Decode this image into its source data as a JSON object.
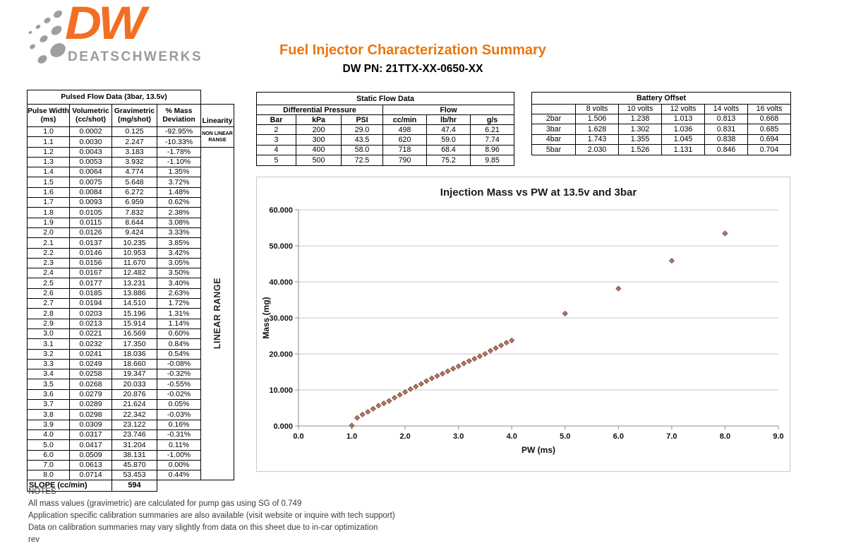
{
  "logo": {
    "brand": "DW",
    "name": "DEATSCHWERKS",
    "orange": "#F26F21",
    "gray": "#9A9A9A"
  },
  "header": {
    "title": "Fuel Injector Characterization Summary",
    "part_number": "DW PN: 21TTX-XX-0650-XX",
    "title_color": "#E8770E"
  },
  "pulsed_table": {
    "title": "Pulsed Flow Data (3bar, 13.5v)",
    "col_headers": [
      [
        "Pulse Width",
        "(ms)"
      ],
      [
        "Volumetric",
        "(cc/shot)"
      ],
      [
        "Gravimetric",
        "(mg/shot)"
      ],
      [
        "% Mass",
        "Deviation"
      ],
      [
        "Linearity"
      ]
    ],
    "non_linear_label": "NON LINEAR RANGE",
    "linear_label": "LINEAR RANGE",
    "rows": [
      [
        "1.0",
        "0.0002",
        "0.125",
        "-92.95%"
      ],
      [
        "1.1",
        "0.0030",
        "2.247",
        "-10.33%"
      ],
      [
        "1.2",
        "0.0043",
        "3.183",
        "-1.78%"
      ],
      [
        "1.3",
        "0.0053",
        "3.932",
        "-1.10%"
      ],
      [
        "1.4",
        "0.0064",
        "4.774",
        "1.35%"
      ],
      [
        "1.5",
        "0.0075",
        "5.648",
        "3.72%"
      ],
      [
        "1.6",
        "0.0084",
        "6.272",
        "1.48%"
      ],
      [
        "1.7",
        "0.0093",
        "6.959",
        "0.62%"
      ],
      [
        "1.8",
        "0.0105",
        "7.832",
        "2.38%"
      ],
      [
        "1.9",
        "0.0115",
        "8.644",
        "3.08%"
      ],
      [
        "2.0",
        "0.0126",
        "9.424",
        "3.33%"
      ],
      [
        "2.1",
        "0.0137",
        "10.235",
        "3.85%"
      ],
      [
        "2.2",
        "0.0146",
        "10.953",
        "3.42%"
      ],
      [
        "2.3",
        "0.0156",
        "11.670",
        "3.05%"
      ],
      [
        "2.4",
        "0.0167",
        "12.482",
        "3.50%"
      ],
      [
        "2.5",
        "0.0177",
        "13.231",
        "3.40%"
      ],
      [
        "2.6",
        "0.0185",
        "13.886",
        "2.63%"
      ],
      [
        "2.7",
        "0.0194",
        "14.510",
        "1.72%"
      ],
      [
        "2.8",
        "0.0203",
        "15.196",
        "1.31%"
      ],
      [
        "2.9",
        "0.0213",
        "15.914",
        "1.14%"
      ],
      [
        "3.0",
        "0.0221",
        "16.569",
        "0.60%"
      ],
      [
        "3.1",
        "0.0232",
        "17.350",
        "0.84%"
      ],
      [
        "3.2",
        "0.0241",
        "18.036",
        "0.54%"
      ],
      [
        "3.3",
        "0.0249",
        "18.660",
        "-0.08%"
      ],
      [
        "3.4",
        "0.0258",
        "19.347",
        "-0.32%"
      ],
      [
        "3.5",
        "0.0268",
        "20.033",
        "-0.55%"
      ],
      [
        "3.6",
        "0.0279",
        "20.876",
        "-0.02%"
      ],
      [
        "3.7",
        "0.0289",
        "21.624",
        "0.05%"
      ],
      [
        "3.8",
        "0.0298",
        "22.342",
        "-0.03%"
      ],
      [
        "3.9",
        "0.0309",
        "23.122",
        "0.16%"
      ],
      [
        "4.0",
        "0.0317",
        "23.746",
        "-0.31%"
      ],
      [
        "5.0",
        "0.0417",
        "31.204",
        "0.11%"
      ],
      [
        "6.0",
        "0.0509",
        "38.131",
        "-1.00%"
      ],
      [
        "7.0",
        "0.0613",
        "45.870",
        "0.00%"
      ],
      [
        "8.0",
        "0.0714",
        "53.453",
        "0.44%"
      ]
    ],
    "slope_label": "SLOPE (cc/min)",
    "slope_value": "594"
  },
  "static_table": {
    "title": "Static Flow Data",
    "group_headers": [
      "Differential Pressure",
      "Flow"
    ],
    "col_headers": [
      "Bar",
      "kPa",
      "PSI",
      "cc/min",
      "lb/hr",
      "g/s"
    ],
    "rows": [
      [
        "2",
        "200",
        "29.0",
        "498",
        "47.4",
        "6.21"
      ],
      [
        "3",
        "300",
        "43.5",
        "620",
        "59.0",
        "7.74"
      ],
      [
        "4",
        "400",
        "58.0",
        "718",
        "68.4",
        "8.96"
      ],
      [
        "5",
        "500",
        "72.5",
        "790",
        "75.2",
        "9.85"
      ]
    ]
  },
  "battery_table": {
    "title": "Battery Offset",
    "col_headers": [
      "",
      "8 volts",
      "10 volts",
      "12 volts",
      "14 volts",
      "16 volts"
    ],
    "rows": [
      [
        "2bar",
        "1.506",
        "1.238",
        "1.013",
        "0.813",
        "0.668"
      ],
      [
        "3bar",
        "1.628",
        "1.302",
        "1.036",
        "0.831",
        "0.685"
      ],
      [
        "4bar",
        "1.743",
        "1.355",
        "1.045",
        "0.838",
        "0.694"
      ],
      [
        "5bar",
        "2.030",
        "1.526",
        "1.131",
        "0.846",
        "0.704"
      ]
    ]
  },
  "chart_data": {
    "type": "scatter",
    "title": "Injection Mass vs PW at 13.5v and 3bar",
    "xlabel": "PW (ms)",
    "ylabel": "Mass (mg)",
    "xlim": [
      0,
      9
    ],
    "ylim": [
      0,
      60
    ],
    "x_ticks": [
      "0.0",
      "1.0",
      "2.0",
      "3.0",
      "4.0",
      "5.0",
      "6.0",
      "7.0",
      "8.0",
      "9.0"
    ],
    "y_ticks": [
      "0.000",
      "10.000",
      "20.000",
      "30.000",
      "40.000",
      "50.000",
      "60.000"
    ],
    "grid": true,
    "legend": false,
    "marker": {
      "shape": "diamond",
      "fill": "#D9731F",
      "stroke": "#65557B"
    },
    "gridline_color": "#C6C6C6",
    "axis_color": "#A6A6A6",
    "points": [
      [
        1.0,
        0.125
      ],
      [
        1.1,
        2.247
      ],
      [
        1.2,
        3.183
      ],
      [
        1.3,
        3.932
      ],
      [
        1.4,
        4.774
      ],
      [
        1.5,
        5.648
      ],
      [
        1.6,
        6.272
      ],
      [
        1.7,
        6.959
      ],
      [
        1.8,
        7.832
      ],
      [
        1.9,
        8.644
      ],
      [
        2.0,
        9.424
      ],
      [
        2.1,
        10.235
      ],
      [
        2.2,
        10.953
      ],
      [
        2.3,
        11.67
      ],
      [
        2.4,
        12.482
      ],
      [
        2.5,
        13.231
      ],
      [
        2.6,
        13.886
      ],
      [
        2.7,
        14.51
      ],
      [
        2.8,
        15.196
      ],
      [
        2.9,
        15.914
      ],
      [
        3.0,
        16.569
      ],
      [
        3.1,
        17.35
      ],
      [
        3.2,
        18.036
      ],
      [
        3.3,
        18.66
      ],
      [
        3.4,
        19.347
      ],
      [
        3.5,
        20.033
      ],
      [
        3.6,
        20.876
      ],
      [
        3.7,
        21.624
      ],
      [
        3.8,
        22.342
      ],
      [
        3.9,
        23.122
      ],
      [
        4.0,
        23.746
      ],
      [
        5.0,
        31.204
      ],
      [
        6.0,
        38.131
      ],
      [
        7.0,
        45.87
      ],
      [
        8.0,
        53.453
      ]
    ]
  },
  "notes": {
    "heading": "NOTES",
    "lines": [
      "All mass values (gravimetric) are calculated for pump gas using SG of 0.749",
      "Application specific calibration summaries are also available (visit website or inquire with tech support)",
      "Data on calibration summaries may vary slightly from data on this sheet due to in-car optimization"
    ],
    "rev": "rev"
  }
}
